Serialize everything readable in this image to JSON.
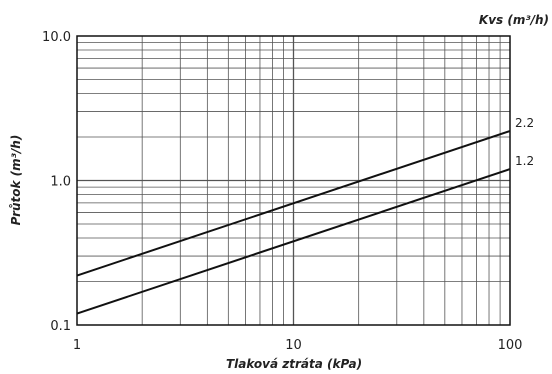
{
  "chart_data": {
    "type": "line",
    "xlabel": "Tlaková ztráta (kPa)",
    "ylabel": "Průtok (m³/h)",
    "legend_title": "Kvs (m³/h)",
    "x_scale": "log",
    "y_scale": "log",
    "xlim": [
      1,
      100
    ],
    "ylim": [
      0.1,
      10
    ],
    "grid": true,
    "x_ticks": [
      "1",
      "10",
      "100"
    ],
    "y_ticks": [
      "0.1",
      "1.0",
      "10.0"
    ],
    "series": [
      {
        "name": "2.2",
        "x": [
          1,
          100
        ],
        "y": [
          0.22,
          2.2
        ]
      },
      {
        "name": "1.2",
        "x": [
          1,
          100
        ],
        "y": [
          0.12,
          1.2
        ]
      }
    ]
  }
}
